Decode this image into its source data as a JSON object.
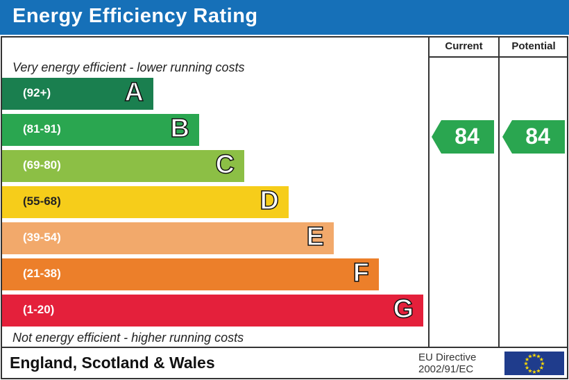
{
  "title": "Energy Efficiency Rating",
  "columns": {
    "current": "Current",
    "potential": "Potential"
  },
  "top_note": "Very energy efficient - lower running costs",
  "bottom_note": "Not energy efficient - higher running costs",
  "footer": {
    "region": "England, Scotland & Wales",
    "directive_line1": "EU Directive",
    "directive_line2": "2002/91/EC",
    "flag": "eu-flag-icon"
  },
  "chart_data": {
    "type": "bar",
    "categories": [
      "A",
      "B",
      "C",
      "D",
      "E",
      "F",
      "G"
    ],
    "bands": [
      {
        "letter": "A",
        "range": "(92+)",
        "color": "#1a7f4f"
      },
      {
        "letter": "B",
        "range": "(81-91)",
        "color": "#2aa650"
      },
      {
        "letter": "C",
        "range": "(69-80)",
        "color": "#8cbf45"
      },
      {
        "letter": "D",
        "range": "(55-68)",
        "color": "#f6cd1a"
      },
      {
        "letter": "E",
        "range": "(39-54)",
        "color": "#f2a96b"
      },
      {
        "letter": "F",
        "range": "(21-38)",
        "color": "#ec7f2a"
      },
      {
        "letter": "G",
        "range": "(1-20)",
        "color": "#e4203b"
      }
    ],
    "current": {
      "value": "84",
      "band": "B",
      "color": "#2aa650"
    },
    "potential": {
      "value": "84",
      "band": "B",
      "color": "#2aa650"
    }
  }
}
